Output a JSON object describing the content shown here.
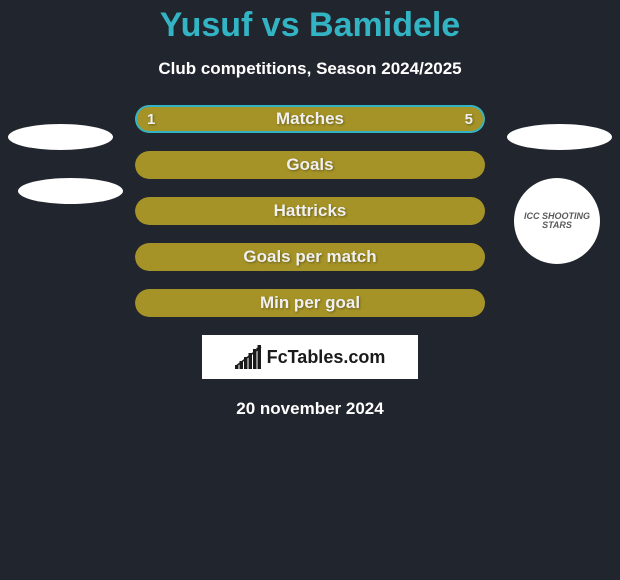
{
  "colors": {
    "background": "#21252d",
    "accent": "#33b4c4",
    "bar_fill": "#a59327",
    "text": "#ffffff",
    "bar_text": "#f0f0f0",
    "border_dark": "#3a3f48",
    "brand_bg": "#ffffff",
    "brand_text": "#1a1a1a"
  },
  "header": {
    "title": "Yusuf vs Bamidele",
    "subtitle": "Club competitions, Season 2024/2025"
  },
  "stats": [
    {
      "id": "matches",
      "label": "Matches",
      "left_value": "1",
      "right_value": "5",
      "left_pct": 16.7,
      "right_pct": 83.3,
      "show_values": true,
      "has_border": true
    },
    {
      "id": "goals",
      "label": "Goals",
      "left_value": null,
      "right_value": null,
      "left_pct": 100,
      "right_pct": 0,
      "show_values": false,
      "has_border": false
    },
    {
      "id": "hattricks",
      "label": "Hattricks",
      "left_value": null,
      "right_value": null,
      "left_pct": 100,
      "right_pct": 0,
      "show_values": false,
      "has_border": false
    },
    {
      "id": "gpm",
      "label": "Goals per match",
      "left_value": null,
      "right_value": null,
      "left_pct": 100,
      "right_pct": 0,
      "show_values": false,
      "has_border": false
    },
    {
      "id": "mpg",
      "label": "Min per goal",
      "left_value": null,
      "right_value": null,
      "left_pct": 100,
      "right_pct": 0,
      "show_values": false,
      "has_border": false
    }
  ],
  "club_logo_text": "ICC SHOOTING STARS",
  "brand": {
    "name": "FcTables.com",
    "bars": [
      4,
      8,
      12,
      16,
      20,
      24
    ]
  },
  "date": "20 november 2024"
}
